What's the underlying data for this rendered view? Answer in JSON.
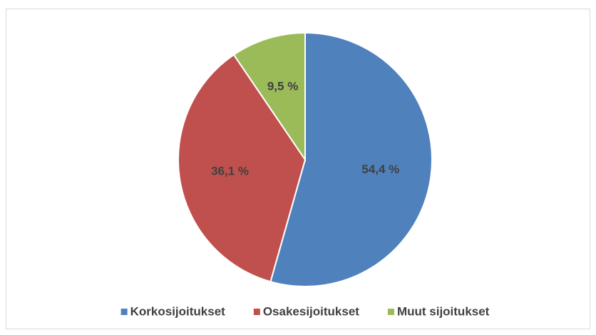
{
  "chart_data": {
    "type": "pie",
    "categories": [
      "Korkosijoitukset",
      "Osakesijoitukset",
      "Muut sijoitukset"
    ],
    "values": [
      54.4,
      36.1,
      9.5
    ],
    "value_labels": [
      "54,4 %",
      "36,1 %",
      "9,5 %"
    ],
    "colors": [
      "#4f81bd",
      "#c0504d",
      "#9bbb59"
    ],
    "legend": "bottom"
  }
}
